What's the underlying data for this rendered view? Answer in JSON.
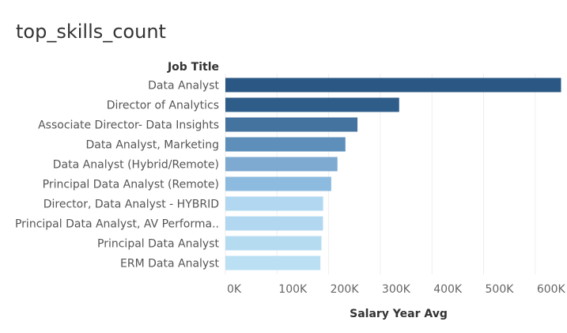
{
  "chart_data": {
    "type": "bar",
    "orientation": "horizontal",
    "title": "top_skills_count",
    "ylabel": "Job Title",
    "xlabel": "Salary Year Avg",
    "categories": [
      "Data Analyst",
      "Director of Analytics",
      "Associate Director- Data Insights",
      "Data Analyst, Marketing",
      "Data Analyst (Hybrid/Remote)",
      "Principal Data Analyst (Remote)",
      "Director, Data Analyst - HYBRID",
      "Principal Data Analyst, AV Performa..",
      "Principal Data Analyst",
      "ERM Data Analyst"
    ],
    "values": [
      650000,
      336500,
      255830,
      232423,
      217000,
      205000,
      189309,
      189000,
      186000,
      184000
    ],
    "colors": [
      "#2a5783",
      "#2e5d8a",
      "#44739f",
      "#5e8fbb",
      "#7ea9d1",
      "#8dbbe0",
      "#b1d8f0",
      "#b1d8f0",
      "#b5dbf1",
      "#bbdff3"
    ],
    "xlim": [
      0,
      660000
    ],
    "xticks": [
      0,
      100000,
      200000,
      300000,
      400000,
      500000,
      600000
    ],
    "xtick_labels": [
      "0K",
      "100K",
      "200K",
      "300K",
      "400K",
      "500K",
      "600K"
    ],
    "grid": "vertical"
  }
}
